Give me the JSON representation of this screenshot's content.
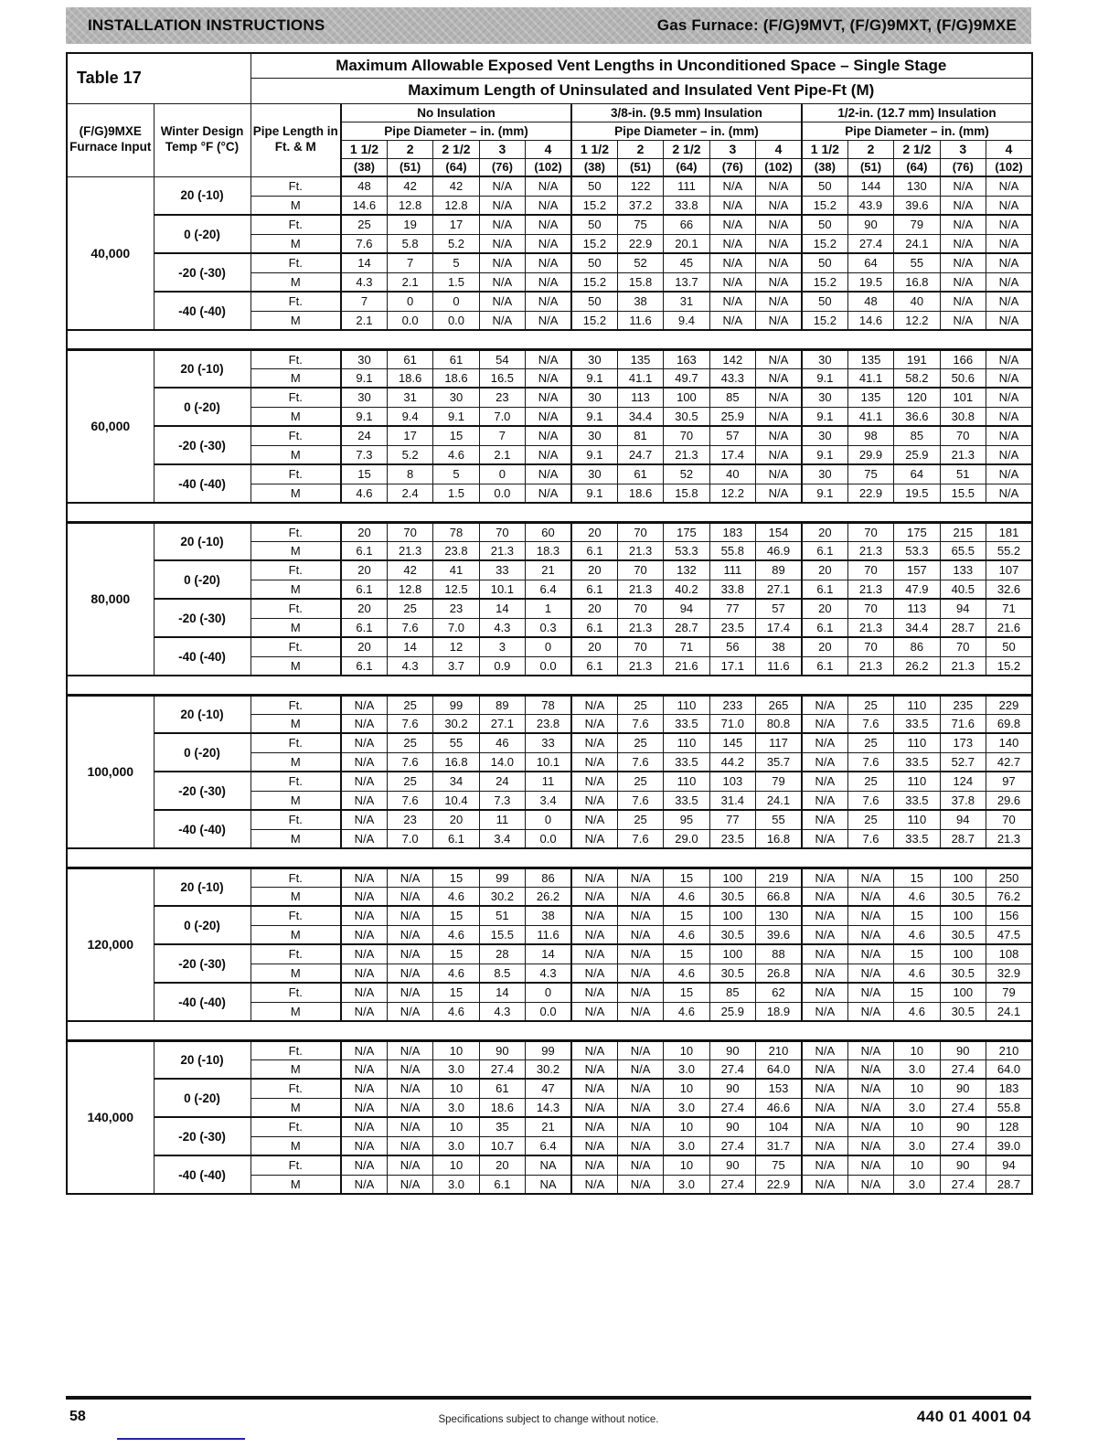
{
  "banner": {
    "left": "INSTALLATION INSTRUCTIONS",
    "right": "Gas Furnace: (F/G)9MVT, (F/G)9MXT, (F/G)9MXE"
  },
  "table": {
    "label": "Table 17",
    "title_line1": "Maximum Allowable Exposed Vent Lengths in Unconditioned Space – Single Stage",
    "title_line2": "Maximum Length of Uninsulated and Insulated Vent Pipe-Ft (M)",
    "col_headers": {
      "furnace": "(F/G)9MXE Furnace Input",
      "winter": "Winter Design Temp °F (°C)",
      "pipe_length": "Pipe Length in Ft. & M"
    },
    "groups": [
      "No Insulation",
      "3/8-in. (9.5 mm) Insulation",
      "1/2-in. (12.7 mm) Insulation"
    ],
    "pipe_diameter_label": "Pipe Diameter – in. (mm)",
    "sizes_in": [
      "1 1/2",
      "2",
      "2 1/2",
      "3",
      "4"
    ],
    "sizes_mm": [
      "(38)",
      "(51)",
      "(64)",
      "(76)",
      "(102)"
    ],
    "row_labels": {
      "ft": "Ft.",
      "m": "M"
    },
    "sections": [
      {
        "input": "40,000",
        "temps": [
          {
            "temp": "20 (-10)",
            "ft": [
              "48",
              "42",
              "42",
              "N/A",
              "N/A",
              "50",
              "122",
              "111",
              "N/A",
              "N/A",
              "50",
              "144",
              "130",
              "N/A",
              "N/A"
            ],
            "m": [
              "14.6",
              "12.8",
              "12.8",
              "N/A",
              "N/A",
              "15.2",
              "37.2",
              "33.8",
              "N/A",
              "N/A",
              "15.2",
              "43.9",
              "39.6",
              "N/A",
              "N/A"
            ]
          },
          {
            "temp": "0 (-20)",
            "ft": [
              "25",
              "19",
              "17",
              "N/A",
              "N/A",
              "50",
              "75",
              "66",
              "N/A",
              "N/A",
              "50",
              "90",
              "79",
              "N/A",
              "N/A"
            ],
            "m": [
              "7.6",
              "5.8",
              "5.2",
              "N/A",
              "N/A",
              "15.2",
              "22.9",
              "20.1",
              "N/A",
              "N/A",
              "15.2",
              "27.4",
              "24.1",
              "N/A",
              "N/A"
            ]
          },
          {
            "temp": "-20 (-30)",
            "ft": [
              "14",
              "7",
              "5",
              "N/A",
              "N/A",
              "50",
              "52",
              "45",
              "N/A",
              "N/A",
              "50",
              "64",
              "55",
              "N/A",
              "N/A"
            ],
            "m": [
              "4.3",
              "2.1",
              "1.5",
              "N/A",
              "N/A",
              "15.2",
              "15.8",
              "13.7",
              "N/A",
              "N/A",
              "15.2",
              "19.5",
              "16.8",
              "N/A",
              "N/A"
            ]
          },
          {
            "temp": "-40 (-40)",
            "ft": [
              "7",
              "0",
              "0",
              "N/A",
              "N/A",
              "50",
              "38",
              "31",
              "N/A",
              "N/A",
              "50",
              "48",
              "40",
              "N/A",
              "N/A"
            ],
            "m": [
              "2.1",
              "0.0",
              "0.0",
              "N/A",
              "N/A",
              "15.2",
              "11.6",
              "9.4",
              "N/A",
              "N/A",
              "15.2",
              "14.6",
              "12.2",
              "N/A",
              "N/A"
            ]
          }
        ]
      },
      {
        "input": "60,000",
        "temps": [
          {
            "temp": "20 (-10)",
            "ft": [
              "30",
              "61",
              "61",
              "54",
              "N/A",
              "30",
              "135",
              "163",
              "142",
              "N/A",
              "30",
              "135",
              "191",
              "166",
              "N/A"
            ],
            "m": [
              "9.1",
              "18.6",
              "18.6",
              "16.5",
              "N/A",
              "9.1",
              "41.1",
              "49.7",
              "43.3",
              "N/A",
              "9.1",
              "41.1",
              "58.2",
              "50.6",
              "N/A"
            ]
          },
          {
            "temp": "0 (-20)",
            "ft": [
              "30",
              "31",
              "30",
              "23",
              "N/A",
              "30",
              "113",
              "100",
              "85",
              "N/A",
              "30",
              "135",
              "120",
              "101",
              "N/A"
            ],
            "m": [
              "9.1",
              "9.4",
              "9.1",
              "7.0",
              "N/A",
              "9.1",
              "34.4",
              "30.5",
              "25.9",
              "N/A",
              "9.1",
              "41.1",
              "36.6",
              "30.8",
              "N/A"
            ]
          },
          {
            "temp": "-20 (-30)",
            "ft": [
              "24",
              "17",
              "15",
              "7",
              "N/A",
              "30",
              "81",
              "70",
              "57",
              "N/A",
              "30",
              "98",
              "85",
              "70",
              "N/A"
            ],
            "m": [
              "7.3",
              "5.2",
              "4.6",
              "2.1",
              "N/A",
              "9.1",
              "24.7",
              "21.3",
              "17.4",
              "N/A",
              "9.1",
              "29.9",
              "25.9",
              "21.3",
              "N/A"
            ]
          },
          {
            "temp": "-40 (-40)",
            "ft": [
              "15",
              "8",
              "5",
              "0",
              "N/A",
              "30",
              "61",
              "52",
              "40",
              "N/A",
              "30",
              "75",
              "64",
              "51",
              "N/A"
            ],
            "m": [
              "4.6",
              "2.4",
              "1.5",
              "0.0",
              "N/A",
              "9.1",
              "18.6",
              "15.8",
              "12.2",
              "N/A",
              "9.1",
              "22.9",
              "19.5",
              "15.5",
              "N/A"
            ]
          }
        ]
      },
      {
        "input": "80,000",
        "temps": [
          {
            "temp": "20 (-10)",
            "ft": [
              "20",
              "70",
              "78",
              "70",
              "60",
              "20",
              "70",
              "175",
              "183",
              "154",
              "20",
              "70",
              "175",
              "215",
              "181"
            ],
            "m": [
              "6.1",
              "21.3",
              "23.8",
              "21.3",
              "18.3",
              "6.1",
              "21.3",
              "53.3",
              "55.8",
              "46.9",
              "6.1",
              "21.3",
              "53.3",
              "65.5",
              "55.2"
            ]
          },
          {
            "temp": "0 (-20)",
            "ft": [
              "20",
              "42",
              "41",
              "33",
              "21",
              "20",
              "70",
              "132",
              "111",
              "89",
              "20",
              "70",
              "157",
              "133",
              "107"
            ],
            "m": [
              "6.1",
              "12.8",
              "12.5",
              "10.1",
              "6.4",
              "6.1",
              "21.3",
              "40.2",
              "33.8",
              "27.1",
              "6.1",
              "21.3",
              "47.9",
              "40.5",
              "32.6"
            ]
          },
          {
            "temp": "-20 (-30)",
            "ft": [
              "20",
              "25",
              "23",
              "14",
              "1",
              "20",
              "70",
              "94",
              "77",
              "57",
              "20",
              "70",
              "113",
              "94",
              "71"
            ],
            "m": [
              "6.1",
              "7.6",
              "7.0",
              "4.3",
              "0.3",
              "6.1",
              "21.3",
              "28.7",
              "23.5",
              "17.4",
              "6.1",
              "21.3",
              "34.4",
              "28.7",
              "21.6"
            ]
          },
          {
            "temp": "-40 (-40)",
            "ft": [
              "20",
              "14",
              "12",
              "3",
              "0",
              "20",
              "70",
              "71",
              "56",
              "38",
              "20",
              "70",
              "86",
              "70",
              "50"
            ],
            "m": [
              "6.1",
              "4.3",
              "3.7",
              "0.9",
              "0.0",
              "6.1",
              "21.3",
              "21.6",
              "17.1",
              "11.6",
              "6.1",
              "21.3",
              "26.2",
              "21.3",
              "15.2"
            ]
          }
        ]
      },
      {
        "input": "100,000",
        "temps": [
          {
            "temp": "20 (-10)",
            "ft": [
              "N/A",
              "25",
              "99",
              "89",
              "78",
              "N/A",
              "25",
              "110",
              "233",
              "265",
              "N/A",
              "25",
              "110",
              "235",
              "229"
            ],
            "m": [
              "N/A",
              "7.6",
              "30.2",
              "27.1",
              "23.8",
              "N/A",
              "7.6",
              "33.5",
              "71.0",
              "80.8",
              "N/A",
              "7.6",
              "33.5",
              "71.6",
              "69.8"
            ]
          },
          {
            "temp": "0 (-20)",
            "ft": [
              "N/A",
              "25",
              "55",
              "46",
              "33",
              "N/A",
              "25",
              "110",
              "145",
              "117",
              "N/A",
              "25",
              "110",
              "173",
              "140"
            ],
            "m": [
              "N/A",
              "7.6",
              "16.8",
              "14.0",
              "10.1",
              "N/A",
              "7.6",
              "33.5",
              "44.2",
              "35.7",
              "N/A",
              "7.6",
              "33.5",
              "52.7",
              "42.7"
            ]
          },
          {
            "temp": "-20 (-30)",
            "ft": [
              "N/A",
              "25",
              "34",
              "24",
              "11",
              "N/A",
              "25",
              "110",
              "103",
              "79",
              "N/A",
              "25",
              "110",
              "124",
              "97"
            ],
            "m": [
              "N/A",
              "7.6",
              "10.4",
              "7.3",
              "3.4",
              "N/A",
              "7.6",
              "33.5",
              "31.4",
              "24.1",
              "N/A",
              "7.6",
              "33.5",
              "37.8",
              "29.6"
            ]
          },
          {
            "temp": "-40 (-40)",
            "ft": [
              "N/A",
              "23",
              "20",
              "11",
              "0",
              "N/A",
              "25",
              "95",
              "77",
              "55",
              "N/A",
              "25",
              "110",
              "94",
              "70"
            ],
            "m": [
              "N/A",
              "7.0",
              "6.1",
              "3.4",
              "0.0",
              "N/A",
              "7.6",
              "29.0",
              "23.5",
              "16.8",
              "N/A",
              "7.6",
              "33.5",
              "28.7",
              "21.3"
            ]
          }
        ]
      },
      {
        "input": "120,000",
        "temps": [
          {
            "temp": "20 (-10)",
            "ft": [
              "N/A",
              "N/A",
              "15",
              "99",
              "86",
              "N/A",
              "N/A",
              "15",
              "100",
              "219",
              "N/A",
              "N/A",
              "15",
              "100",
              "250"
            ],
            "m": [
              "N/A",
              "N/A",
              "4.6",
              "30.2",
              "26.2",
              "N/A",
              "N/A",
              "4.6",
              "30.5",
              "66.8",
              "N/A",
              "N/A",
              "4.6",
              "30.5",
              "76.2"
            ]
          },
          {
            "temp": "0 (-20)",
            "ft": [
              "N/A",
              "N/A",
              "15",
              "51",
              "38",
              "N/A",
              "N/A",
              "15",
              "100",
              "130",
              "N/A",
              "N/A",
              "15",
              "100",
              "156"
            ],
            "m": [
              "N/A",
              "N/A",
              "4.6",
              "15.5",
              "11.6",
              "N/A",
              "N/A",
              "4.6",
              "30.5",
              "39.6",
              "N/A",
              "N/A",
              "4.6",
              "30.5",
              "47.5"
            ]
          },
          {
            "temp": "-20 (-30)",
            "ft": [
              "N/A",
              "N/A",
              "15",
              "28",
              "14",
              "N/A",
              "N/A",
              "15",
              "100",
              "88",
              "N/A",
              "N/A",
              "15",
              "100",
              "108"
            ],
            "m": [
              "N/A",
              "N/A",
              "4.6",
              "8.5",
              "4.3",
              "N/A",
              "N/A",
              "4.6",
              "30.5",
              "26.8",
              "N/A",
              "N/A",
              "4.6",
              "30.5",
              "32.9"
            ]
          },
          {
            "temp": "-40 (-40)",
            "ft": [
              "N/A",
              "N/A",
              "15",
              "14",
              "0",
              "N/A",
              "N/A",
              "15",
              "85",
              "62",
              "N/A",
              "N/A",
              "15",
              "100",
              "79"
            ],
            "m": [
              "N/A",
              "N/A",
              "4.6",
              "4.3",
              "0.0",
              "N/A",
              "N/A",
              "4.6",
              "25.9",
              "18.9",
              "N/A",
              "N/A",
              "4.6",
              "30.5",
              "24.1"
            ]
          }
        ]
      },
      {
        "input": "140,000",
        "temps": [
          {
            "temp": "20 (-10)",
            "ft": [
              "N/A",
              "N/A",
              "10",
              "90",
              "99",
              "N/A",
              "N/A",
              "10",
              "90",
              "210",
              "N/A",
              "N/A",
              "10",
              "90",
              "210"
            ],
            "m": [
              "N/A",
              "N/A",
              "3.0",
              "27.4",
              "30.2",
              "N/A",
              "N/A",
              "3.0",
              "27.4",
              "64.0",
              "N/A",
              "N/A",
              "3.0",
              "27.4",
              "64.0"
            ]
          },
          {
            "temp": "0 (-20)",
            "ft": [
              "N/A",
              "N/A",
              "10",
              "61",
              "47",
              "N/A",
              "N/A",
              "10",
              "90",
              "153",
              "N/A",
              "N/A",
              "10",
              "90",
              "183"
            ],
            "m": [
              "N/A",
              "N/A",
              "3.0",
              "18.6",
              "14.3",
              "N/A",
              "N/A",
              "3.0",
              "27.4",
              "46.6",
              "N/A",
              "N/A",
              "3.0",
              "27.4",
              "55.8"
            ]
          },
          {
            "temp": "-20 (-30)",
            "ft": [
              "N/A",
              "N/A",
              "10",
              "35",
              "21",
              "N/A",
              "N/A",
              "10",
              "90",
              "104",
              "N/A",
              "N/A",
              "10",
              "90",
              "128"
            ],
            "m": [
              "N/A",
              "N/A",
              "3.0",
              "10.7",
              "6.4",
              "N/A",
              "N/A",
              "3.0",
              "27.4",
              "31.7",
              "N/A",
              "N/A",
              "3.0",
              "27.4",
              "39.0"
            ]
          },
          {
            "temp": "-40 (-40)",
            "ft": [
              "N/A",
              "N/A",
              "10",
              "20",
              "NA",
              "N/A",
              "N/A",
              "10",
              "90",
              "75",
              "N/A",
              "N/A",
              "10",
              "90",
              "94"
            ],
            "m": [
              "N/A",
              "N/A",
              "3.0",
              "6.1",
              "NA",
              "N/A",
              "N/A",
              "3.0",
              "27.4",
              "22.9",
              "N/A",
              "N/A",
              "3.0",
              "27.4",
              "28.7"
            ]
          }
        ]
      }
    ]
  },
  "footer": {
    "page_number": "58",
    "center": "Specifications subject to change without notice.",
    "doc_number": "440 01 4001 04"
  }
}
